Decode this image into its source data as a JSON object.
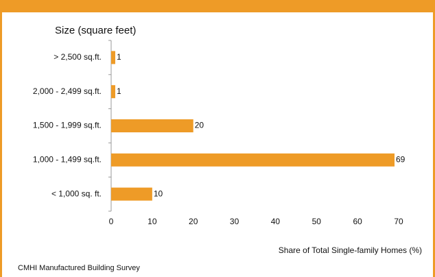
{
  "chart_data": {
    "type": "bar",
    "orientation": "horizontal",
    "y_axis_title": "Size (square feet)",
    "x_axis_title": "Share of Total Single-family Homes (%)",
    "source": "CMHI Manufactured Building Survey",
    "categories": [
      "> 2,500 sq.ft.",
      "2,000 - 2,499 sq.ft.",
      "1,500 - 1,999 sq.ft.",
      "1,000 - 1,499 sq.ft.",
      "< 1,000 sq. ft."
    ],
    "values": [
      1,
      1,
      20,
      69,
      10
    ],
    "color": "#ee9b27",
    "xlim": [
      0,
      70
    ],
    "xticks": [
      0,
      10,
      20,
      30,
      40,
      50,
      60,
      70
    ],
    "grid": false
  }
}
